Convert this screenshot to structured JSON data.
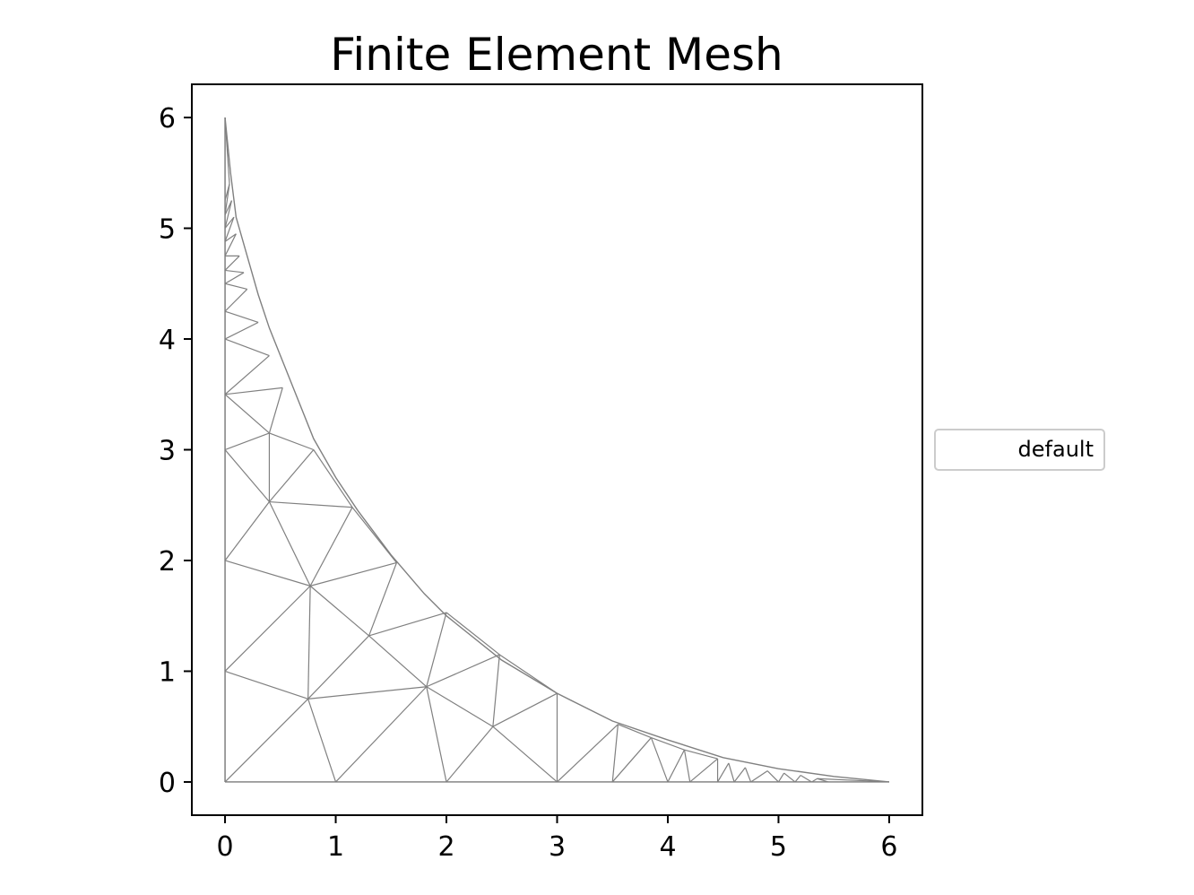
{
  "chart_data": {
    "type": "mesh",
    "title": "Finite Element Mesh",
    "xlabel": "",
    "ylabel": "",
    "xlim": [
      -0.3,
      6.3
    ],
    "ylim": [
      -0.3,
      6.3
    ],
    "xticks": [
      0,
      1,
      2,
      3,
      4,
      5,
      6
    ],
    "yticks": [
      0,
      1,
      2,
      3,
      4,
      5,
      6
    ],
    "grid": false,
    "legend": {
      "position": "center-right",
      "entries": [
        "default"
      ]
    },
    "edge_color": "#808080",
    "boundary": [
      [
        0,
        6
      ],
      [
        0.05,
        5.5
      ],
      [
        0.1,
        5.1
      ],
      [
        0.2,
        4.75
      ],
      [
        0.3,
        4.4
      ],
      [
        0.4,
        4.1
      ],
      [
        0.5,
        3.85
      ],
      [
        0.6,
        3.6
      ],
      [
        0.8,
        3.1
      ],
      [
        1.0,
        2.75
      ],
      [
        1.2,
        2.45
      ],
      [
        1.5,
        2.05
      ],
      [
        1.8,
        1.7
      ],
      [
        2.0,
        1.5
      ],
      [
        2.5,
        1.1
      ],
      [
        3.0,
        0.8
      ],
      [
        3.5,
        0.55
      ],
      [
        4.0,
        0.38
      ],
      [
        4.5,
        0.22
      ],
      [
        5.0,
        0.12
      ],
      [
        5.5,
        0.05
      ],
      [
        6,
        0
      ]
    ],
    "nodes": [
      [
        0,
        0
      ],
      [
        1,
        0
      ],
      [
        2,
        0
      ],
      [
        3,
        0
      ],
      [
        3.5,
        0
      ],
      [
        4,
        0
      ],
      [
        4.2,
        0
      ],
      [
        4.45,
        0
      ],
      [
        4.6,
        0
      ],
      [
        4.75,
        0
      ],
      [
        5.0,
        0
      ],
      [
        5.15,
        0
      ],
      [
        5.3,
        0
      ],
      [
        5.45,
        0
      ],
      [
        6,
        0
      ],
      [
        0,
        1
      ],
      [
        0,
        2
      ],
      [
        0,
        3
      ],
      [
        0,
        3.5
      ],
      [
        0,
        4
      ],
      [
        0,
        4.25
      ],
      [
        0,
        4.5
      ],
      [
        0,
        4.62
      ],
      [
        0,
        4.75
      ],
      [
        0,
        4.88
      ],
      [
        0,
        5.0
      ],
      [
        0,
        5.12
      ],
      [
        0,
        5.25
      ],
      [
        0,
        6
      ],
      [
        0.75,
        0.75
      ],
      [
        1.82,
        0.86
      ],
      [
        2.42,
        0.5
      ],
      [
        0.77,
        1.77
      ],
      [
        1.3,
        1.32
      ],
      [
        0.4,
        2.53
      ],
      [
        0.4,
        3.15
      ],
      [
        3.55,
        0.52
      ],
      [
        3.85,
        0.4
      ],
      [
        4.15,
        0.29
      ],
      [
        4.45,
        0.21
      ],
      [
        4.55,
        0.17
      ],
      [
        4.7,
        0.13
      ],
      [
        4.9,
        0.1
      ],
      [
        5.05,
        0.08
      ],
      [
        5.2,
        0.06
      ],
      [
        5.35,
        0.03
      ],
      [
        1.55,
        1.98
      ],
      [
        1.15,
        2.48
      ],
      [
        2.0,
        1.53
      ],
      [
        2.48,
        1.15
      ],
      [
        3.0,
        0.8
      ],
      [
        0.8,
        3.0
      ],
      [
        0.52,
        3.56
      ],
      [
        0.4,
        3.85
      ],
      [
        0.3,
        4.15
      ],
      [
        0.2,
        4.45
      ],
      [
        0.17,
        4.6
      ],
      [
        0.13,
        4.75
      ],
      [
        0.1,
        4.95
      ],
      [
        0.08,
        5.1
      ],
      [
        0.06,
        5.25
      ],
      [
        0.04,
        5.4
      ]
    ],
    "triangles": [
      [
        0,
        1,
        29
      ],
      [
        0,
        15,
        29
      ],
      [
        1,
        2,
        30
      ],
      [
        1,
        29,
        30
      ],
      [
        2,
        30,
        31
      ],
      [
        2,
        3,
        31
      ],
      [
        3,
        31,
        50
      ],
      [
        3,
        4,
        36
      ],
      [
        4,
        5,
        37
      ],
      [
        4,
        36,
        37
      ],
      [
        5,
        6,
        38
      ],
      [
        5,
        37,
        38
      ],
      [
        6,
        7,
        39
      ],
      [
        6,
        38,
        39
      ],
      [
        7,
        8,
        40
      ],
      [
        8,
        9,
        41
      ],
      [
        9,
        10,
        42
      ],
      [
        10,
        11,
        43
      ],
      [
        11,
        12,
        44
      ],
      [
        12,
        13,
        45
      ],
      [
        13,
        14,
        45
      ],
      [
        15,
        16,
        32
      ],
      [
        15,
        29,
        32
      ],
      [
        29,
        30,
        33
      ],
      [
        29,
        32,
        33
      ],
      [
        30,
        31,
        49
      ],
      [
        30,
        33,
        48
      ],
      [
        30,
        48,
        49
      ],
      [
        31,
        49,
        50
      ],
      [
        32,
        33,
        46
      ],
      [
        32,
        46,
        47
      ],
      [
        32,
        34,
        47
      ],
      [
        16,
        32,
        34
      ],
      [
        16,
        17,
        34
      ],
      [
        17,
        34,
        35
      ],
      [
        34,
        35,
        51
      ],
      [
        34,
        47,
        51
      ],
      [
        17,
        18,
        35
      ],
      [
        18,
        35,
        52
      ],
      [
        18,
        19,
        53
      ],
      [
        19,
        20,
        54
      ],
      [
        20,
        21,
        55
      ],
      [
        21,
        22,
        56
      ],
      [
        22,
        23,
        57
      ],
      [
        23,
        24,
        58
      ],
      [
        24,
        25,
        59
      ],
      [
        25,
        26,
        60
      ],
      [
        26,
        27,
        61
      ],
      [
        27,
        28,
        61
      ]
    ]
  }
}
